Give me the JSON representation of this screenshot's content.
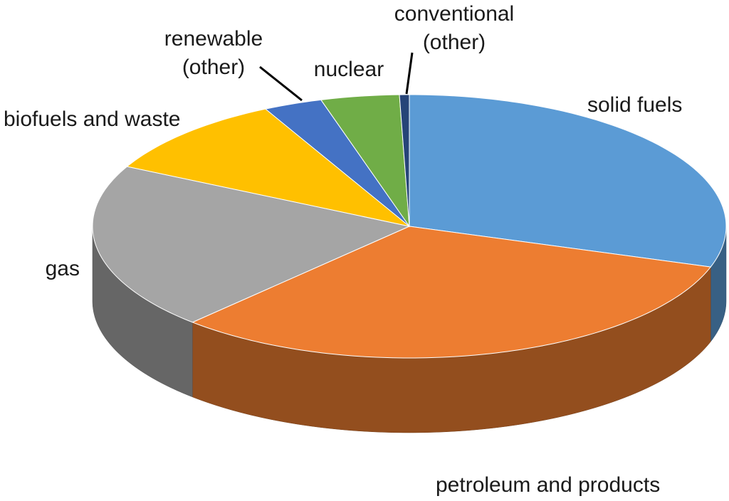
{
  "chart_data": {
    "type": "pie",
    "categories": [
      "solid fuels",
      "petroleum and products",
      "gas",
      "biofuels and waste",
      "renewable (other)",
      "nuclear",
      "conventional (other)"
    ],
    "values": [
      30,
      32,
      20.5,
      10,
      3,
      4,
      0.5
    ],
    "colors": [
      "#5b9bd5",
      "#ed7d31",
      "#a5a5a5",
      "#ffc000",
      "#4472c4",
      "#70ad47",
      "#264478"
    ]
  }
}
